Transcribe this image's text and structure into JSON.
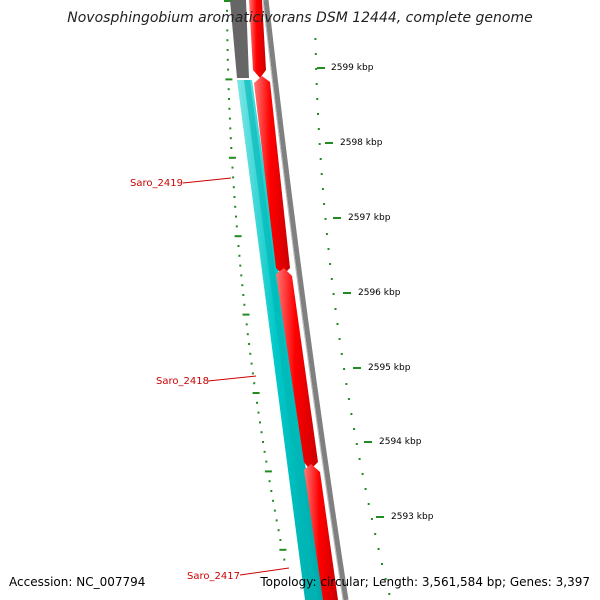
{
  "title": "Novosphingobium aromaticivorans DSM 12444, complete genome",
  "footer": {
    "accession": "Accession: NC_007794",
    "summary": "Topology: circular; Length: 3,561,584 bp; Genes: 3,397"
  },
  "colors": {
    "forward_gene": "#ff0000",
    "reverse_gene": "#00cccc",
    "backbone": "#808080",
    "tick": "#228b22",
    "label": "#cc0000"
  },
  "tick_labels": [
    {
      "label": "2599 kbp",
      "kbp": 2599
    },
    {
      "label": "2598 kbp",
      "kbp": 2598
    },
    {
      "label": "2597 kbp",
      "kbp": 2597
    },
    {
      "label": "2596 kbp",
      "kbp": 2596
    },
    {
      "label": "2595 kbp",
      "kbp": 2595
    },
    {
      "label": "2594 kbp",
      "kbp": 2594
    },
    {
      "label": "2593 kbp",
      "kbp": 2593
    }
  ],
  "gene_labels": [
    {
      "name": "Saro_2419"
    },
    {
      "name": "Saro_2418"
    },
    {
      "name": "Saro_2417"
    }
  ]
}
